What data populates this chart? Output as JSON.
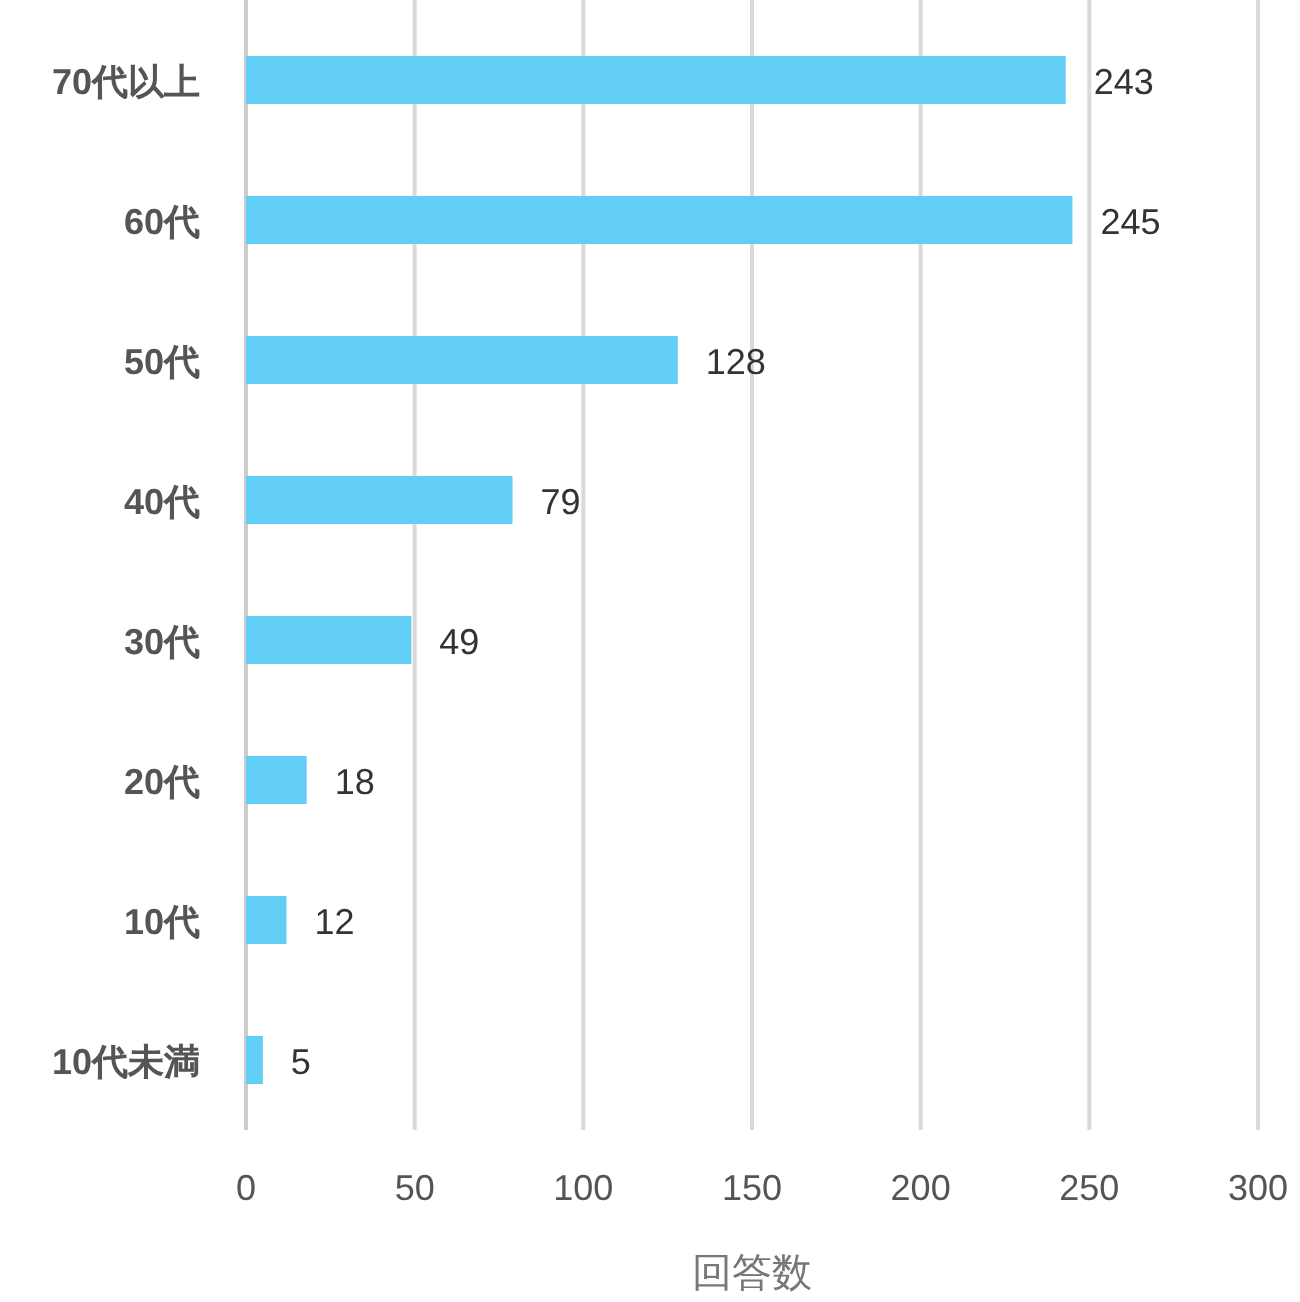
{
  "chart_data": {
    "type": "bar",
    "orientation": "horizontal",
    "categories": [
      "70代以上",
      "60代",
      "50代",
      "40代",
      "30代",
      "20代",
      "10代",
      "10代未満"
    ],
    "values": [
      243,
      245,
      128,
      79,
      49,
      18,
      12,
      5
    ],
    "color": "#62cdf5",
    "xlim": [
      0,
      300
    ],
    "xticks": [
      0,
      50,
      100,
      150,
      200,
      250,
      300
    ],
    "xlabel": "回答数",
    "grid": "x",
    "data_labels": true
  }
}
